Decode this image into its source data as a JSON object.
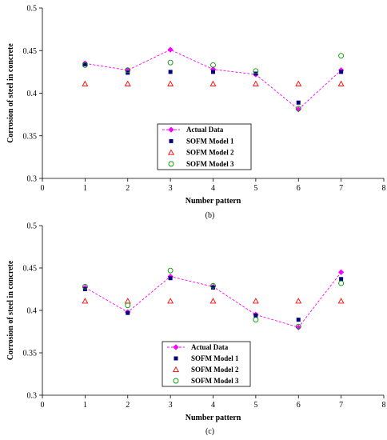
{
  "chart_data": [
    {
      "type": "line",
      "caption": "(b)",
      "xlabel": "Number pattern",
      "ylabel": "Corrosion of steel in concrete",
      "xlim": [
        0,
        8
      ],
      "ylim": [
        0.3,
        0.5
      ],
      "xticks": [
        0,
        1,
        2,
        3,
        4,
        5,
        6,
        7,
        8
      ],
      "yticks": [
        0.3,
        0.35,
        0.4,
        0.45,
        0.5
      ],
      "ytick_labels": [
        "0.3",
        "0.35",
        "0.4",
        "0.45",
        "0.5"
      ],
      "grid": false,
      "legend_position": "bottom-center",
      "x": [
        1,
        2,
        3,
        4,
        5,
        6,
        7
      ],
      "series": [
        {
          "name": "Actual Data",
          "marker": "diamond",
          "line": "dashed",
          "color": "#ff00ff",
          "values": [
            0.435,
            0.427,
            0.451,
            0.428,
            0.422,
            0.381,
            0.427
          ]
        },
        {
          "name": "SOFM Model 1",
          "marker": "square",
          "line": "none",
          "color": "#000080",
          "values": [
            0.434,
            0.424,
            0.425,
            0.425,
            0.423,
            0.389,
            0.425
          ]
        },
        {
          "name": "SOFM Model 2",
          "marker": "triangle-open",
          "line": "none",
          "color": "#ff0000",
          "values": [
            0.411,
            0.411,
            0.411,
            0.411,
            0.411,
            0.411,
            0.411
          ]
        },
        {
          "name": "SOFM Model 3",
          "marker": "circle-open",
          "line": "none",
          "color": "#009900",
          "values": [
            0.433,
            0.427,
            0.436,
            0.433,
            0.426,
            0.382,
            0.444
          ]
        }
      ]
    },
    {
      "type": "line",
      "caption": "(c)",
      "xlabel": "Number pattern",
      "ylabel": "Corrosion of steel in concrete",
      "xlim": [
        0,
        8
      ],
      "ylim": [
        0.3,
        0.5
      ],
      "xticks": [
        0,
        1,
        2,
        3,
        4,
        5,
        6,
        7,
        8
      ],
      "yticks": [
        0.3,
        0.35,
        0.4,
        0.45,
        0.5
      ],
      "ytick_labels": [
        "0.3",
        "0.35",
        "0.4",
        "0.45",
        "0.5"
      ],
      "grid": false,
      "legend_position": "bottom-center",
      "x": [
        1,
        2,
        3,
        4,
        5,
        6,
        7
      ],
      "series": [
        {
          "name": "Actual Data",
          "marker": "diamond",
          "line": "dashed",
          "color": "#ff00ff",
          "values": [
            0.427,
            0.398,
            0.44,
            0.428,
            0.395,
            0.38,
            0.445
          ]
        },
        {
          "name": "SOFM Model 1",
          "marker": "square",
          "line": "none",
          "color": "#000080",
          "values": [
            0.425,
            0.397,
            0.438,
            0.427,
            0.394,
            0.389,
            0.437
          ]
        },
        {
          "name": "SOFM Model 2",
          "marker": "triangle-open",
          "line": "none",
          "color": "#ff0000",
          "values": [
            0.411,
            0.411,
            0.411,
            0.411,
            0.411,
            0.411,
            0.411
          ]
        },
        {
          "name": "SOFM Model 3",
          "marker": "circle-open",
          "line": "none",
          "color": "#009900",
          "values": [
            0.428,
            0.406,
            0.447,
            0.429,
            0.389,
            0.381,
            0.432
          ]
        }
      ]
    }
  ]
}
